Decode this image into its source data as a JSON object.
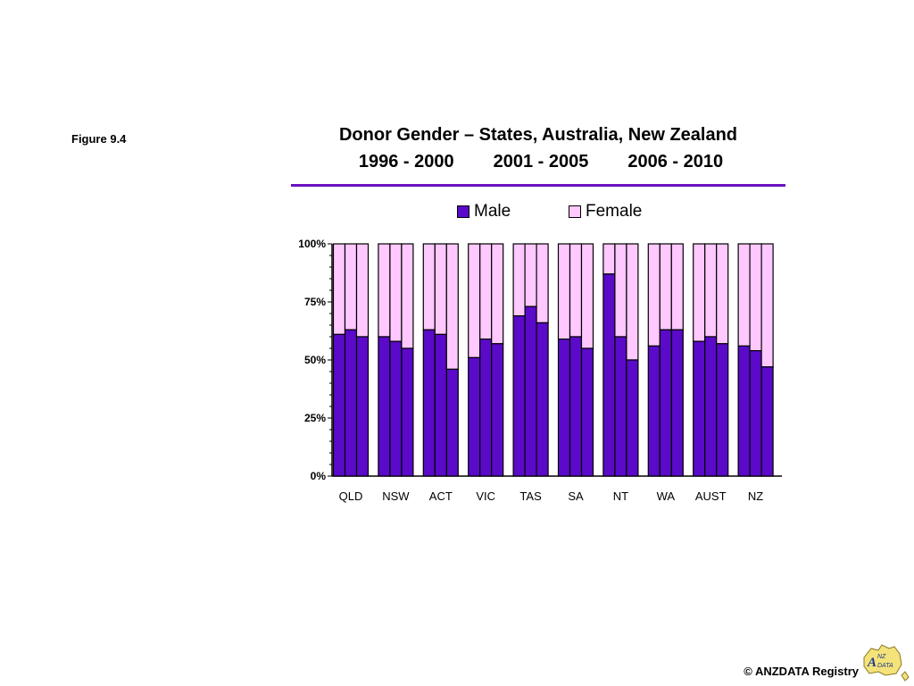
{
  "figure_label": "Figure 9.4",
  "title": "Donor Gender – States, Australia, New Zealand",
  "periods": [
    "1996 - 2000",
    "2001 - 2005",
    "2006 - 2010"
  ],
  "footer": "© ANZDATA Registry",
  "logo_text": "ANZDATA",
  "colors": {
    "male": "#5a0ac8",
    "female": "#ffc8ff",
    "rule": "#6a11c0"
  },
  "chart_data": {
    "type": "bar",
    "stacked": true,
    "percent": true,
    "categories": [
      "QLD",
      "NSW",
      "ACT",
      "VIC",
      "TAS",
      "SA",
      "NT",
      "WA",
      "AUST",
      "NZ"
    ],
    "periods": [
      "1996 - 2000",
      "2001 - 2005",
      "2006 - 2010"
    ],
    "series": [
      {
        "name": "Male",
        "values": [
          [
            61,
            63,
            60
          ],
          [
            60,
            58,
            55
          ],
          [
            63,
            61,
            46
          ],
          [
            51,
            59,
            57
          ],
          [
            69,
            73,
            66
          ],
          [
            59,
            60,
            55
          ],
          [
            87,
            60,
            50
          ],
          [
            56,
            63,
            63
          ],
          [
            58,
            60,
            57
          ],
          [
            56,
            54,
            47
          ]
        ]
      },
      {
        "name": "Female",
        "values": [
          [
            39,
            37,
            40
          ],
          [
            40,
            42,
            45
          ],
          [
            37,
            39,
            54
          ],
          [
            49,
            41,
            43
          ],
          [
            31,
            27,
            34
          ],
          [
            41,
            40,
            45
          ],
          [
            13,
            40,
            50
          ],
          [
            44,
            37,
            37
          ],
          [
            42,
            40,
            43
          ],
          [
            44,
            46,
            53
          ]
        ]
      }
    ],
    "yticks": [
      "0%",
      "25%",
      "50%",
      "75%",
      "100%"
    ],
    "ylim": [
      0,
      100
    ],
    "legend_position": "top"
  }
}
